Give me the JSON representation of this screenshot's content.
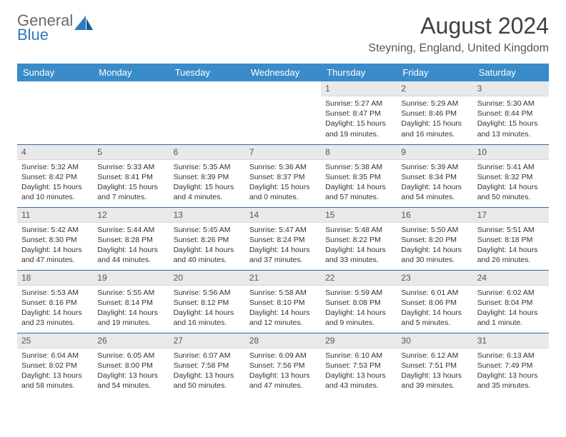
{
  "logo": {
    "line1": "General",
    "line2": "Blue"
  },
  "title": "August 2024",
  "location": "Steyning, England, United Kingdom",
  "daynames": [
    "Sunday",
    "Monday",
    "Tuesday",
    "Wednesday",
    "Thursday",
    "Friday",
    "Saturday"
  ],
  "colors": {
    "header_bg": "#3a8bc9",
    "row_border": "#3a6a94",
    "daynum_bg": "#e9e9e9"
  },
  "weeks": [
    [
      null,
      null,
      null,
      null,
      {
        "num": "1",
        "sunrise": "Sunrise: 5:27 AM",
        "sunset": "Sunset: 8:47 PM",
        "daylight": "Daylight: 15 hours and 19 minutes."
      },
      {
        "num": "2",
        "sunrise": "Sunrise: 5:29 AM",
        "sunset": "Sunset: 8:46 PM",
        "daylight": "Daylight: 15 hours and 16 minutes."
      },
      {
        "num": "3",
        "sunrise": "Sunrise: 5:30 AM",
        "sunset": "Sunset: 8:44 PM",
        "daylight": "Daylight: 15 hours and 13 minutes."
      }
    ],
    [
      {
        "num": "4",
        "sunrise": "Sunrise: 5:32 AM",
        "sunset": "Sunset: 8:42 PM",
        "daylight": "Daylight: 15 hours and 10 minutes."
      },
      {
        "num": "5",
        "sunrise": "Sunrise: 5:33 AM",
        "sunset": "Sunset: 8:41 PM",
        "daylight": "Daylight: 15 hours and 7 minutes."
      },
      {
        "num": "6",
        "sunrise": "Sunrise: 5:35 AM",
        "sunset": "Sunset: 8:39 PM",
        "daylight": "Daylight: 15 hours and 4 minutes."
      },
      {
        "num": "7",
        "sunrise": "Sunrise: 5:36 AM",
        "sunset": "Sunset: 8:37 PM",
        "daylight": "Daylight: 15 hours and 0 minutes."
      },
      {
        "num": "8",
        "sunrise": "Sunrise: 5:38 AM",
        "sunset": "Sunset: 8:35 PM",
        "daylight": "Daylight: 14 hours and 57 minutes."
      },
      {
        "num": "9",
        "sunrise": "Sunrise: 5:39 AM",
        "sunset": "Sunset: 8:34 PM",
        "daylight": "Daylight: 14 hours and 54 minutes."
      },
      {
        "num": "10",
        "sunrise": "Sunrise: 5:41 AM",
        "sunset": "Sunset: 8:32 PM",
        "daylight": "Daylight: 14 hours and 50 minutes."
      }
    ],
    [
      {
        "num": "11",
        "sunrise": "Sunrise: 5:42 AM",
        "sunset": "Sunset: 8:30 PM",
        "daylight": "Daylight: 14 hours and 47 minutes."
      },
      {
        "num": "12",
        "sunrise": "Sunrise: 5:44 AM",
        "sunset": "Sunset: 8:28 PM",
        "daylight": "Daylight: 14 hours and 44 minutes."
      },
      {
        "num": "13",
        "sunrise": "Sunrise: 5:45 AM",
        "sunset": "Sunset: 8:26 PM",
        "daylight": "Daylight: 14 hours and 40 minutes."
      },
      {
        "num": "14",
        "sunrise": "Sunrise: 5:47 AM",
        "sunset": "Sunset: 8:24 PM",
        "daylight": "Daylight: 14 hours and 37 minutes."
      },
      {
        "num": "15",
        "sunrise": "Sunrise: 5:48 AM",
        "sunset": "Sunset: 8:22 PM",
        "daylight": "Daylight: 14 hours and 33 minutes."
      },
      {
        "num": "16",
        "sunrise": "Sunrise: 5:50 AM",
        "sunset": "Sunset: 8:20 PM",
        "daylight": "Daylight: 14 hours and 30 minutes."
      },
      {
        "num": "17",
        "sunrise": "Sunrise: 5:51 AM",
        "sunset": "Sunset: 8:18 PM",
        "daylight": "Daylight: 14 hours and 26 minutes."
      }
    ],
    [
      {
        "num": "18",
        "sunrise": "Sunrise: 5:53 AM",
        "sunset": "Sunset: 8:16 PM",
        "daylight": "Daylight: 14 hours and 23 minutes."
      },
      {
        "num": "19",
        "sunrise": "Sunrise: 5:55 AM",
        "sunset": "Sunset: 8:14 PM",
        "daylight": "Daylight: 14 hours and 19 minutes."
      },
      {
        "num": "20",
        "sunrise": "Sunrise: 5:56 AM",
        "sunset": "Sunset: 8:12 PM",
        "daylight": "Daylight: 14 hours and 16 minutes."
      },
      {
        "num": "21",
        "sunrise": "Sunrise: 5:58 AM",
        "sunset": "Sunset: 8:10 PM",
        "daylight": "Daylight: 14 hours and 12 minutes."
      },
      {
        "num": "22",
        "sunrise": "Sunrise: 5:59 AM",
        "sunset": "Sunset: 8:08 PM",
        "daylight": "Daylight: 14 hours and 9 minutes."
      },
      {
        "num": "23",
        "sunrise": "Sunrise: 6:01 AM",
        "sunset": "Sunset: 8:06 PM",
        "daylight": "Daylight: 14 hours and 5 minutes."
      },
      {
        "num": "24",
        "sunrise": "Sunrise: 6:02 AM",
        "sunset": "Sunset: 8:04 PM",
        "daylight": "Daylight: 14 hours and 1 minute."
      }
    ],
    [
      {
        "num": "25",
        "sunrise": "Sunrise: 6:04 AM",
        "sunset": "Sunset: 8:02 PM",
        "daylight": "Daylight: 13 hours and 58 minutes."
      },
      {
        "num": "26",
        "sunrise": "Sunrise: 6:05 AM",
        "sunset": "Sunset: 8:00 PM",
        "daylight": "Daylight: 13 hours and 54 minutes."
      },
      {
        "num": "27",
        "sunrise": "Sunrise: 6:07 AM",
        "sunset": "Sunset: 7:58 PM",
        "daylight": "Daylight: 13 hours and 50 minutes."
      },
      {
        "num": "28",
        "sunrise": "Sunrise: 6:09 AM",
        "sunset": "Sunset: 7:56 PM",
        "daylight": "Daylight: 13 hours and 47 minutes."
      },
      {
        "num": "29",
        "sunrise": "Sunrise: 6:10 AM",
        "sunset": "Sunset: 7:53 PM",
        "daylight": "Daylight: 13 hours and 43 minutes."
      },
      {
        "num": "30",
        "sunrise": "Sunrise: 6:12 AM",
        "sunset": "Sunset: 7:51 PM",
        "daylight": "Daylight: 13 hours and 39 minutes."
      },
      {
        "num": "31",
        "sunrise": "Sunrise: 6:13 AM",
        "sunset": "Sunset: 7:49 PM",
        "daylight": "Daylight: 13 hours and 35 minutes."
      }
    ]
  ]
}
